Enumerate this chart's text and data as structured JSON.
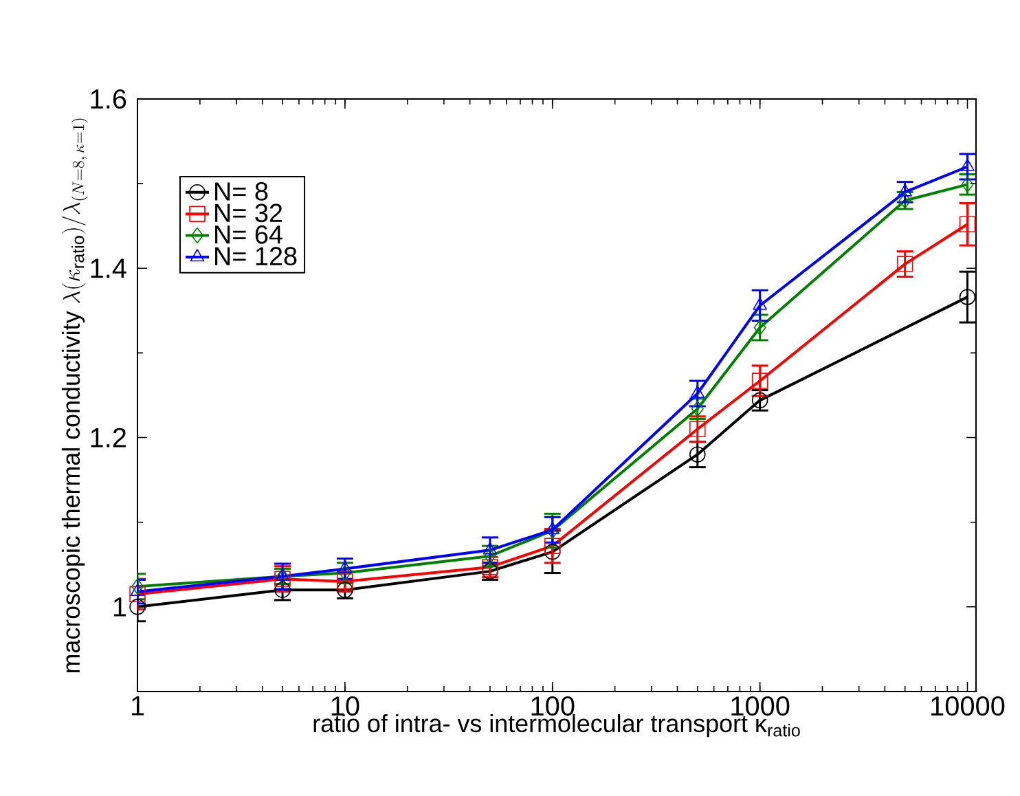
{
  "chart_data": {
    "type": "line",
    "xlabel": "ratio of intra- vs intermolecular transport κ$_{ratio}$",
    "ylabel": "\\mbox{macroscopic thermal conductivity }\\lambda(\\kappa_{\\mathrm{ratio}})/\\lambda_{(N=8,\\,\\kappa=1)}",
    "x": [
      1,
      5,
      10,
      50,
      100,
      500,
      1000,
      5000,
      10000
    ],
    "log": "x",
    "xlim": [
      1,
      11000
    ],
    "ylim": [
      0.9,
      1.6
    ],
    "xticks": [
      1,
      10,
      100,
      1000,
      10000
    ],
    "yticks": [
      1,
      1.2,
      1.4,
      1.6
    ],
    "grid": false,
    "legend": "top left",
    "line_style": "solid",
    "series": [
      {
        "name": "N= 8",
        "color": "#000000",
        "marker": "circle",
        "x": [
          1,
          5,
          10,
          50,
          100,
          500,
          1000,
          10000
        ],
        "values": [
          1.0,
          1.02,
          1.02,
          1.042,
          1.065,
          1.18,
          1.244,
          1.366
        ],
        "errors": [
          0.017,
          0.012,
          0.01,
          0.01,
          0.025,
          0.015,
          0.012,
          0.03
        ]
      },
      {
        "name": "N= 32",
        "color": "#ff0000",
        "marker": "square",
        "values": [
          1.015,
          1.033,
          1.03,
          1.047,
          1.072,
          1.21,
          1.267,
          1.405,
          1.452
        ],
        "errors": [
          0.018,
          0.015,
          0.012,
          0.012,
          0.02,
          0.015,
          0.018,
          0.015,
          0.025
        ]
      },
      {
        "name": "N= 64",
        "color": "#008000",
        "marker": "diamond",
        "values": [
          1.024,
          1.036,
          1.04,
          1.06,
          1.09,
          1.234,
          1.33,
          1.48,
          1.499
        ],
        "errors": [
          0.015,
          0.009,
          0.012,
          0.012,
          0.02,
          0.012,
          0.015,
          0.01,
          0.012
        ]
      },
      {
        "name": "N= 128",
        "color": "#0000ff",
        "marker": "triangle",
        "values": [
          1.018,
          1.036,
          1.045,
          1.067,
          1.091,
          1.252,
          1.356,
          1.49,
          1.52
        ],
        "errors": [
          0.014,
          0.015,
          0.012,
          0.015,
          0.015,
          0.015,
          0.018,
          0.012,
          0.015
        ]
      }
    ]
  }
}
